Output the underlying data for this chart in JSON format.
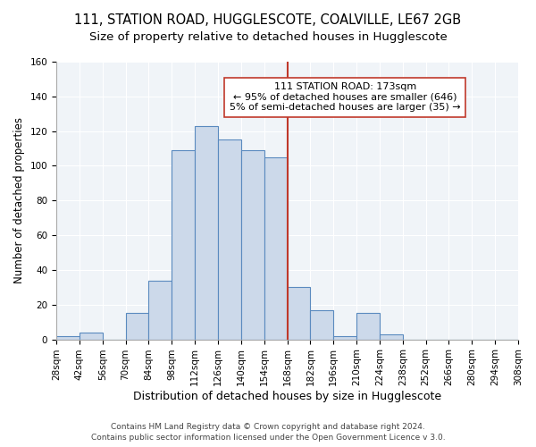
{
  "title": "111, STATION ROAD, HUGGLESCOTE, COALVILLE, LE67 2GB",
  "subtitle": "Size of property relative to detached houses in Hugglescote",
  "xlabel": "Distribution of detached houses by size in Hugglescote",
  "ylabel": "Number of detached properties",
  "footer1": "Contains HM Land Registry data © Crown copyright and database right 2024.",
  "footer2": "Contains public sector information licensed under the Open Government Licence v 3.0.",
  "bin_labels": [
    "28sqm",
    "42sqm",
    "56sqm",
    "70sqm",
    "84sqm",
    "98sqm",
    "112sqm",
    "126sqm",
    "140sqm",
    "154sqm",
    "168sqm",
    "182sqm",
    "196sqm",
    "210sqm",
    "224sqm",
    "238sqm",
    "252sqm",
    "266sqm",
    "280sqm",
    "294sqm",
    "308sqm"
  ],
  "bin_edges": [
    28,
    42,
    56,
    70,
    84,
    98,
    112,
    126,
    140,
    154,
    168,
    182,
    196,
    210,
    224,
    238,
    252,
    266,
    280,
    294,
    308
  ],
  "bar_heights": [
    2,
    4,
    0,
    15,
    34,
    109,
    123,
    115,
    109,
    105,
    30,
    17,
    2,
    15,
    3,
    0,
    0,
    0,
    0,
    0
  ],
  "bar_color": "#ccd9ea",
  "bar_edgecolor": "#5a8abf",
  "vline_x": 168,
  "vline_color": "#c0392b",
  "annotation_text_line1": "111 STATION ROAD: 173sqm",
  "annotation_text_line2": "← 95% of detached houses are smaller (646)",
  "annotation_text_line3": "5% of semi-detached houses are larger (35) →",
  "annotation_box_edgecolor": "#c0392b",
  "annotation_box_facecolor": "white",
  "ylim": [
    0,
    160
  ],
  "yticks": [
    0,
    20,
    40,
    60,
    80,
    100,
    120,
    140,
    160
  ],
  "title_fontsize": 10.5,
  "subtitle_fontsize": 9.5,
  "xlabel_fontsize": 9,
  "ylabel_fontsize": 8.5,
  "tick_fontsize": 7.5,
  "annotation_fontsize": 8,
  "footer_fontsize": 6.5,
  "bg_color": "#ffffff",
  "plot_bg_color": "#f0f4f8",
  "grid_color": "#ffffff"
}
